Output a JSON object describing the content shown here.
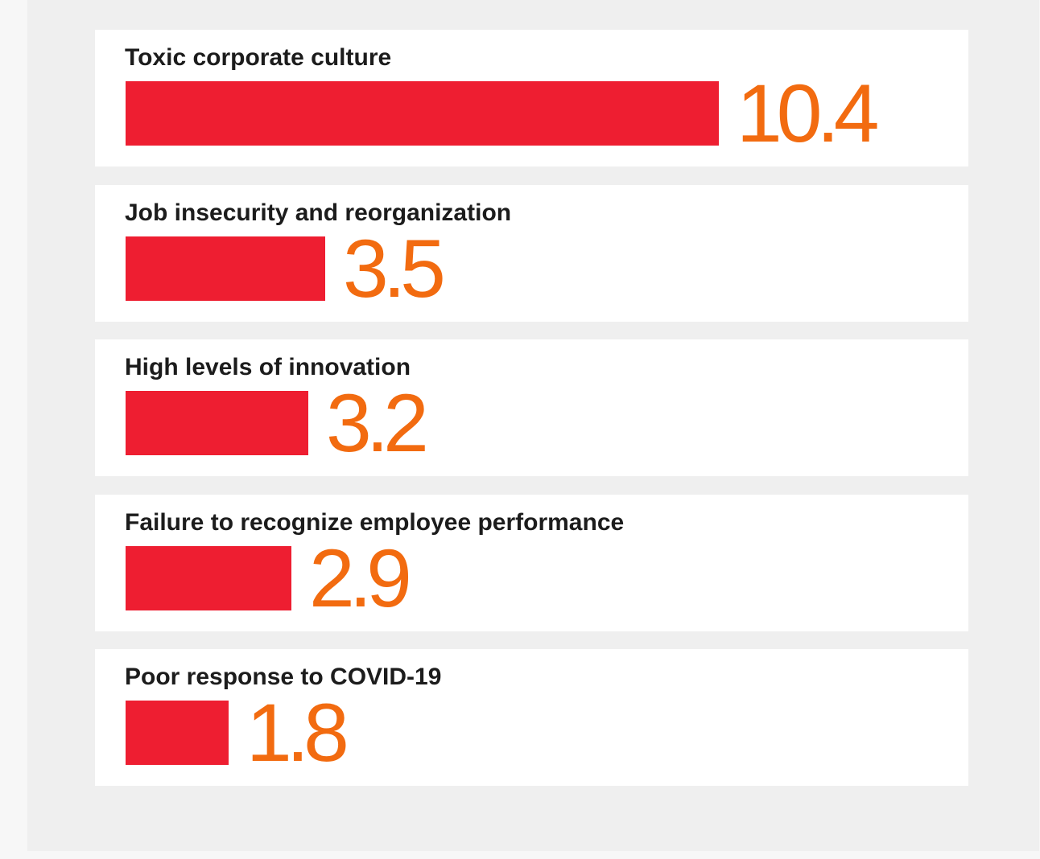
{
  "chart_data": {
    "type": "bar",
    "orientation": "horizontal",
    "categories": [
      "Toxic corporate culture",
      "Job insecurity and reorganization",
      "High levels of innovation",
      "Failure to recognize employee performance",
      "Poor response to COVID-19"
    ],
    "values": [
      10.4,
      3.5,
      3.2,
      2.9,
      1.8
    ],
    "value_labels": [
      "10.4",
      "3.5",
      "3.2",
      "2.9",
      "1.8"
    ],
    "xlim": [
      0,
      10.4
    ],
    "grid": false,
    "legend": "none"
  },
  "colors": {
    "bar": "#ee1e31",
    "value_text": "#f26b10",
    "label_text": "#1c1c1c",
    "panel_bg": "#efefef",
    "card_bg": "#ffffff",
    "page_bg": "#f7f7f7"
  }
}
